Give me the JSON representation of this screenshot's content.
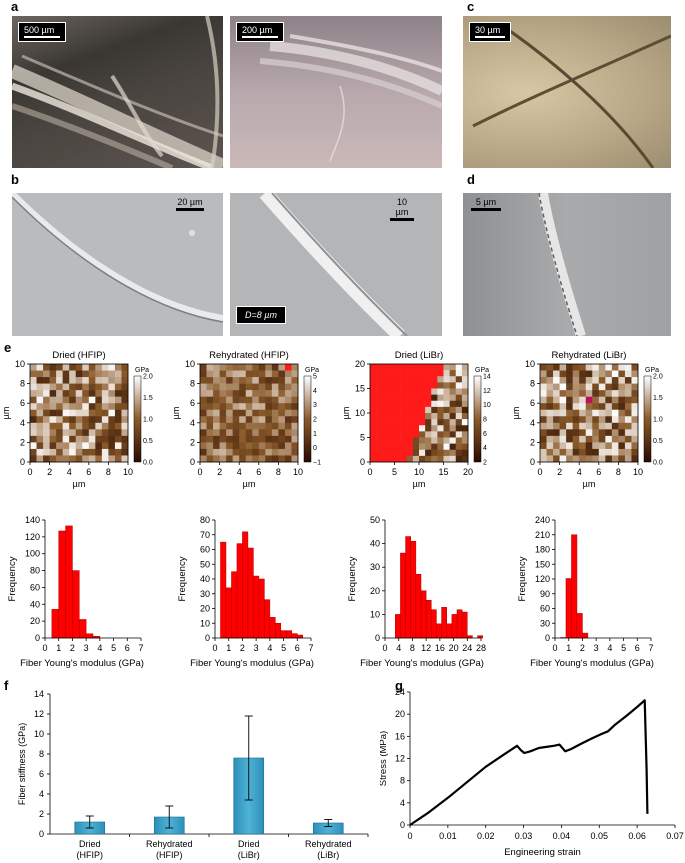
{
  "panel_labels": {
    "a": "a",
    "b": "b",
    "c": "c",
    "d": "d",
    "e": "e",
    "f": "f",
    "g": "g"
  },
  "photos": {
    "a1_scale": "500 µm",
    "a2_scale": "200 µm",
    "c_scale": "30 µm",
    "b1_scale": "20 µm",
    "b2_scale": "10 µm",
    "b2_diameter": "D=8 µm",
    "d_scale": "5 µm"
  },
  "colors": {
    "heatmap_low": "#2a0a00",
    "heatmap_mid": "#8a5a2a",
    "heatmap_high": "#ffffff",
    "heatmap_outlier": "#ff1a1a",
    "histogram": "#ff0000",
    "bar_fill": "#4fb3d6",
    "line": "#000000"
  },
  "chart_data": [
    {
      "type": "heatmap",
      "title": "Dried (HFIP)",
      "xlabel": "µm",
      "ylabel": "µm",
      "x_ticks": [
        "0",
        "2",
        "4",
        "6",
        "8",
        "10"
      ],
      "y_ticks": [
        "0",
        "2",
        "4",
        "6",
        "8",
        "10"
      ],
      "colorbar_unit": "GPa",
      "colorbar_ticks": [
        "0.0",
        "0.5",
        "1.0",
        "1.5",
        "2.0"
      ],
      "range": [
        0,
        2
      ]
    },
    {
      "type": "heatmap",
      "title": "Rehydrated (HFIP)",
      "xlabel": "µm",
      "ylabel": "µm",
      "x_ticks": [
        "0",
        "2",
        "4",
        "6",
        "8",
        "10"
      ],
      "y_ticks": [
        "0",
        "2",
        "4",
        "6",
        "8",
        "10"
      ],
      "colorbar_unit": "GPa",
      "colorbar_ticks": [
        "−1",
        "0",
        "1",
        "2",
        "3",
        "4",
        "5"
      ],
      "range": [
        -1,
        5
      ]
    },
    {
      "type": "heatmap",
      "title": "Dried (LiBr)",
      "xlabel": "µm",
      "ylabel": "µm",
      "x_ticks": [
        "0",
        "5",
        "10",
        "15",
        "20"
      ],
      "y_ticks": [
        "0",
        "5",
        "10",
        "15",
        "20"
      ],
      "colorbar_unit": "GPa",
      "colorbar_ticks": [
        "2",
        "4",
        "6",
        "8",
        "10",
        "12",
        "14"
      ],
      "range": [
        1,
        15
      ]
    },
    {
      "type": "heatmap",
      "title": "Rehydrated (LiBr)",
      "xlabel": "µm",
      "ylabel": "µm",
      "x_ticks": [
        "0",
        "2",
        "4",
        "6",
        "8",
        "10"
      ],
      "y_ticks": [
        "0",
        "2",
        "4",
        "6",
        "8",
        "10"
      ],
      "colorbar_unit": "GPa",
      "colorbar_ticks": [
        "0.0",
        "0.5",
        "1.0",
        "1.5",
        "2.0"
      ],
      "range": [
        0,
        2
      ]
    },
    {
      "type": "bar",
      "subtype": "histogram",
      "xlabel": "Fiber Young's modulus (GPa)",
      "ylabel": "Frequency",
      "x_ticks": [
        "0",
        "1",
        "2",
        "3",
        "4",
        "5",
        "6",
        "7"
      ],
      "y_ticks": [
        "0",
        "20",
        "40",
        "60",
        "80",
        "100",
        "120",
        "140"
      ],
      "xlim": [
        0,
        7
      ],
      "ylim": [
        0,
        140
      ],
      "bin_width": 0.5,
      "bin_starts": [
        0,
        0.5,
        1,
        1.5,
        2,
        2.5,
        3,
        3.5
      ],
      "values": [
        0,
        34,
        127,
        133,
        80,
        22,
        5,
        2
      ]
    },
    {
      "type": "bar",
      "subtype": "histogram",
      "xlabel": "Fiber Young's modulus (GPa)",
      "ylabel": "Frequency",
      "x_ticks": [
        "0",
        "1",
        "2",
        "3",
        "4",
        "5",
        "6",
        "7"
      ],
      "y_ticks": [
        "0",
        "10",
        "20",
        "30",
        "40",
        "50",
        "60",
        "70",
        "80"
      ],
      "xlim": [
        0,
        7
      ],
      "ylim": [
        0,
        80
      ],
      "bin_width": 0.4,
      "bin_starts": [
        0.4,
        0.8,
        1.2,
        1.6,
        2.0,
        2.4,
        2.8,
        3.2,
        3.6,
        4.0,
        4.4,
        4.8,
        5.2,
        5.6,
        6.0
      ],
      "values": [
        65,
        34,
        45,
        64,
        72,
        61,
        42,
        40,
        26,
        14,
        10,
        5,
        5,
        3,
        2
      ]
    },
    {
      "type": "bar",
      "subtype": "histogram",
      "xlabel": "Fiber Young's modulus (GPa)",
      "ylabel": "Frequency",
      "x_ticks": [
        "0",
        "4",
        "8",
        "12",
        "16",
        "20",
        "24",
        "28"
      ],
      "y_ticks": [
        "0",
        "10",
        "20",
        "30",
        "40",
        "50"
      ],
      "xlim": [
        0,
        28
      ],
      "ylim": [
        0,
        50
      ],
      "bin_width": 1.5,
      "bin_starts": [
        3,
        4.5,
        6,
        7.5,
        9,
        10.5,
        12,
        13.5,
        15,
        16.5,
        18,
        19.5,
        21,
        22.5,
        24,
        25.5,
        27
      ],
      "values": [
        10,
        36,
        43,
        41,
        27,
        20,
        16,
        12,
        6,
        13,
        6,
        10,
        12,
        11,
        1,
        0,
        1
      ]
    },
    {
      "type": "bar",
      "subtype": "histogram",
      "xlabel": "Fiber Young's modulus (GPa)",
      "ylabel": "Frequency",
      "x_ticks": [
        "0",
        "1",
        "2",
        "3",
        "4",
        "5",
        "6",
        "7"
      ],
      "y_ticks": [
        "0",
        "30",
        "60",
        "90",
        "120",
        "150",
        "180",
        "210",
        "240"
      ],
      "xlim": [
        0,
        7
      ],
      "ylim": [
        0,
        240
      ],
      "bin_width": 0.4,
      "bin_starts": [
        0.4,
        0.8,
        1.2,
        1.6,
        2.0
      ],
      "values": [
        1,
        121,
        210,
        50,
        10
      ]
    },
    {
      "type": "bar",
      "ylabel": "Fiber stiffness (GPa)",
      "categories": [
        "Dried (HFIP)",
        "Rehydrated (HFIP)",
        "Dried (LiBr)",
        "Rehydrated (LiBr)"
      ],
      "category_lines": [
        [
          "Dried",
          "(HFIP)"
        ],
        [
          "Rehydrated",
          "(HFIP)"
        ],
        [
          "Dried",
          "(LiBr)"
        ],
        [
          "Rehydrated",
          "(LiBr)"
        ]
      ],
      "values": [
        1.2,
        1.7,
        7.6,
        1.1
      ],
      "errors": [
        0.6,
        1.1,
        4.2,
        0.35
      ],
      "ylim": [
        0,
        14
      ],
      "y_ticks": [
        "0",
        "2",
        "4",
        "6",
        "8",
        "10",
        "12",
        "14"
      ]
    },
    {
      "type": "line",
      "xlabel": "Engineering strain",
      "ylabel": "Stress (MPa)",
      "xlim": [
        0,
        0.07
      ],
      "ylim": [
        0,
        24
      ],
      "x_ticks": [
        "0",
        "0.01",
        "0.02",
        "0.03",
        "0.04",
        "0.05",
        "0.06",
        "0.07"
      ],
      "y_ticks": [
        "0",
        "4",
        "8",
        "12",
        "16",
        "20",
        "24"
      ],
      "x": [
        0,
        0.005,
        0.01,
        0.015,
        0.02,
        0.025,
        0.0283,
        0.0293,
        0.0302,
        0.0318,
        0.034,
        0.036,
        0.038,
        0.0395,
        0.041,
        0.0425,
        0.045,
        0.048,
        0.0505,
        0.0523,
        0.054,
        0.057,
        0.06,
        0.062,
        0.0625,
        0.0627
      ],
      "y": [
        0,
        2.3,
        4.9,
        7.7,
        10.5,
        12.8,
        14.3,
        13.5,
        13.0,
        13.3,
        13.9,
        14.1,
        14.3,
        14.5,
        13.3,
        13.7,
        14.6,
        15.6,
        16.4,
        16.9,
        18.0,
        19.6,
        21.3,
        22.5,
        10.0,
        2.0
      ]
    }
  ]
}
